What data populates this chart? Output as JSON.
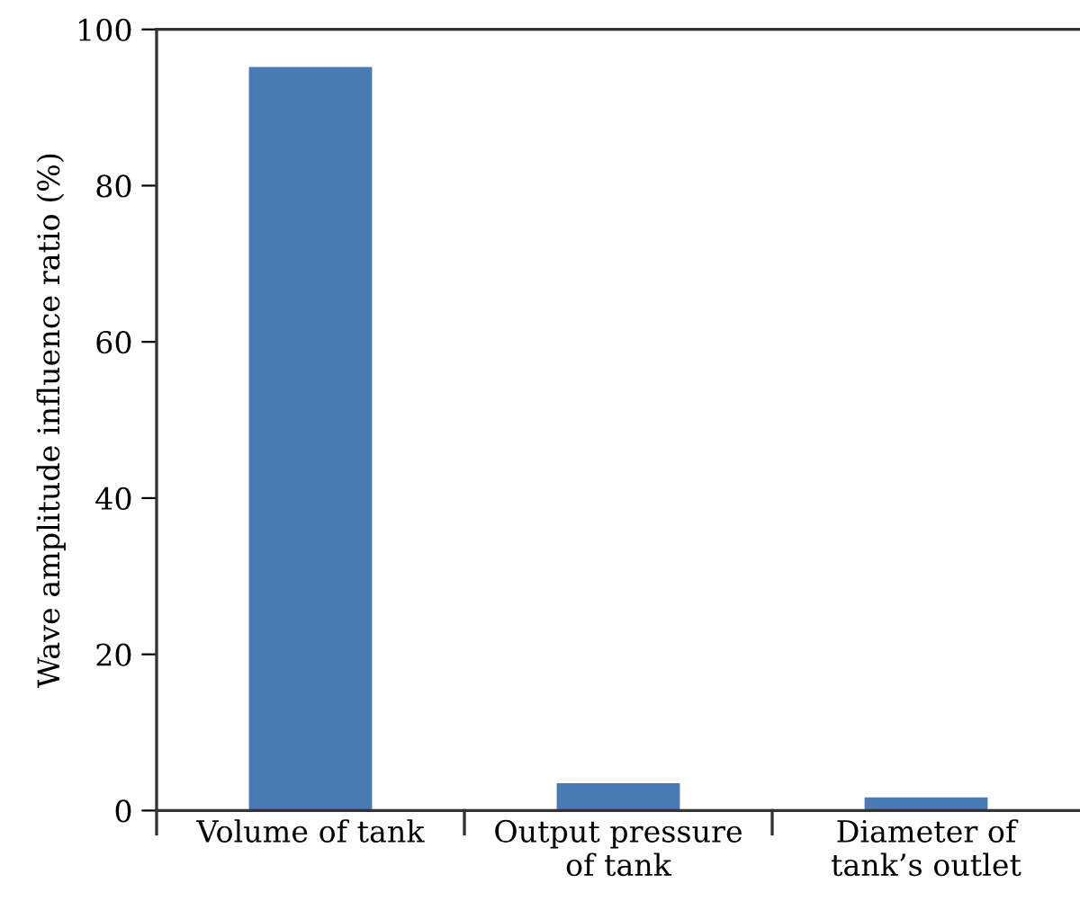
{
  "chart_data": {
    "type": "bar",
    "ylabel": "Wave amplitude influence ratio (%)",
    "categories": [
      "Volume of tank",
      "Output pressure\nof tank",
      "Diameter of\ntank’s outlet"
    ],
    "values": [
      95.2,
      3.5,
      1.7
    ],
    "color": "#4a7ab4",
    "ylim": [
      0,
      100
    ],
    "yticks": [
      0,
      20,
      40,
      60,
      80,
      100
    ],
    "grid": false,
    "legend": false
  }
}
